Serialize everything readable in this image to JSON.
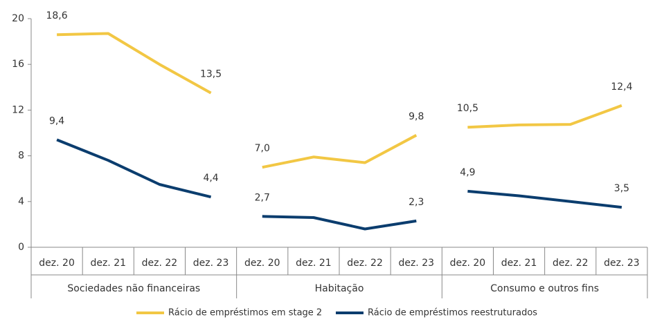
{
  "chart_data": {
    "type": "line",
    "groups": [
      {
        "name": "Sociedades não financeiras",
        "categories": [
          "dez. 20",
          "dez. 21",
          "dez. 22",
          "dez. 23"
        ]
      },
      {
        "name": "Habitação",
        "categories": [
          "dez. 20",
          "dez. 21",
          "dez. 22",
          "dez. 23"
        ]
      },
      {
        "name": "Consumo e outros fins",
        "categories": [
          "dez. 20",
          "dez. 21",
          "dez. 22",
          "dez. 23"
        ]
      }
    ],
    "series": [
      {
        "name": "Rácio de empréstimos em stage 2",
        "color": "#f2c744",
        "values": [
          [
            18.6,
            18.7,
            16.0,
            13.5
          ],
          [
            7.0,
            7.9,
            7.4,
            9.8
          ],
          [
            10.5,
            10.7,
            10.75,
            12.4
          ]
        ],
        "value_labels": [
          [
            "18,6",
            null,
            null,
            "13,5"
          ],
          [
            "7,0",
            null,
            null,
            "9,8"
          ],
          [
            "10,5",
            null,
            null,
            "12,4"
          ]
        ]
      },
      {
        "name": "Rácio de empréstimos reestruturados",
        "color": "#0b3d6e",
        "values": [
          [
            9.4,
            7.6,
            5.5,
            4.4
          ],
          [
            2.7,
            2.6,
            1.6,
            2.3
          ],
          [
            4.9,
            4.5,
            4.0,
            3.5
          ]
        ],
        "value_labels": [
          [
            "9,4",
            null,
            null,
            "4,4"
          ],
          [
            "2,7",
            null,
            null,
            "2,3"
          ],
          [
            "4,9",
            null,
            null,
            "3,5"
          ]
        ]
      }
    ],
    "ylim": [
      0,
      20
    ],
    "yticks": [
      0,
      4,
      8,
      12,
      16,
      20
    ],
    "legend": "bottom"
  }
}
